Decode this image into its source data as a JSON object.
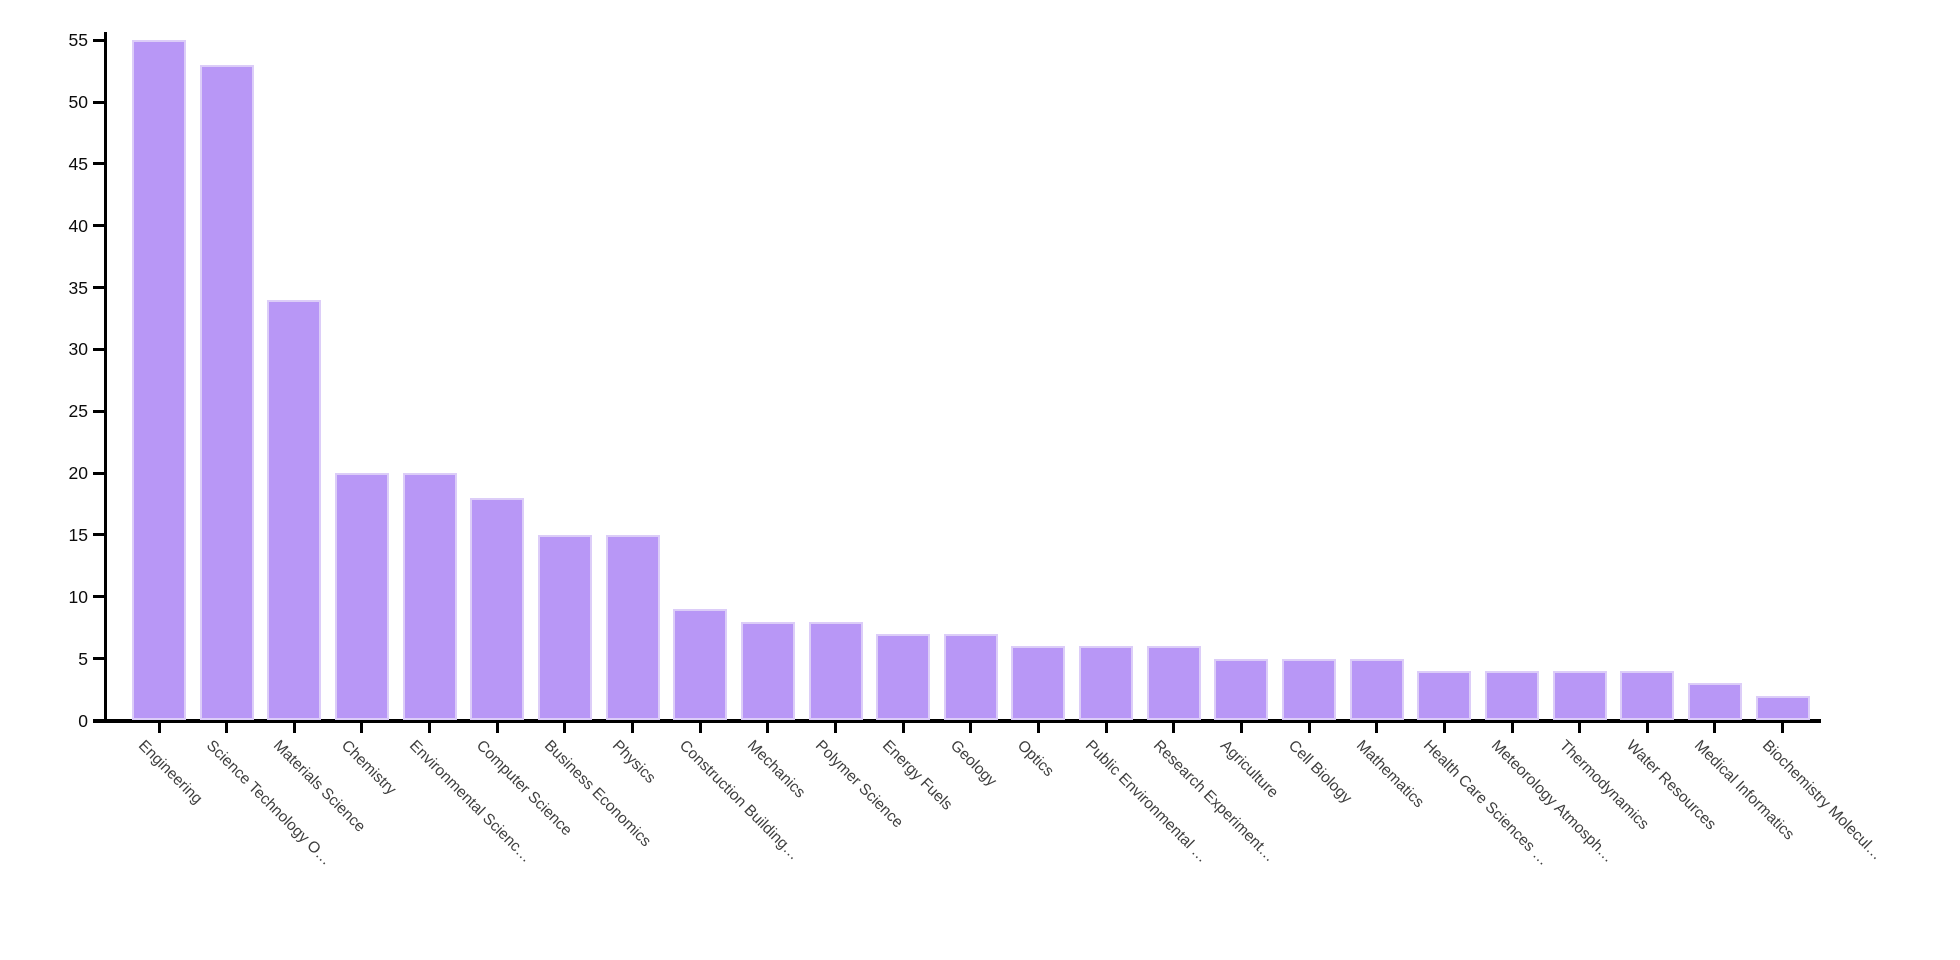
{
  "chart_data": {
    "type": "bar",
    "title": "",
    "xlabel": "",
    "ylabel": "",
    "categories": [
      "Engineering",
      "Science Technology O…",
      "Materials Science",
      "Chemistry",
      "Environmental Scienc…",
      "Computer Science",
      "Business Economics",
      "Physics",
      "Construction Building…",
      "Mechanics",
      "Polymer Science",
      "Energy Fuels",
      "Geology",
      "Optics",
      "Public Environmental …",
      "Research Experiment…",
      "Agriculture",
      "Cell Biology",
      "Mathematics",
      "Health Care Sciences …",
      "Meteorology Atmosph…",
      "Thermodynamics",
      "Water Resources",
      "Medical Informatics",
      "Biochemistry Molecul…"
    ],
    "values": [
      55,
      53,
      34,
      20,
      20,
      18,
      15,
      15,
      9,
      8,
      8,
      7,
      7,
      6,
      6,
      6,
      5,
      5,
      5,
      4,
      4,
      4,
      4,
      3,
      2
    ],
    "yticks": [
      0,
      5,
      10,
      15,
      20,
      25,
      30,
      35,
      40,
      45,
      50,
      55
    ],
    "ylim": [
      0,
      55
    ],
    "grid": false,
    "legend": null,
    "colors": {
      "bar_fill": "#b897f6",
      "bar_edge": "#dccdf8",
      "axis": "#000000",
      "ytick_label": "#0c0c0c",
      "xtick_label": "#3e3e3e",
      "background": "#ffffff"
    }
  }
}
